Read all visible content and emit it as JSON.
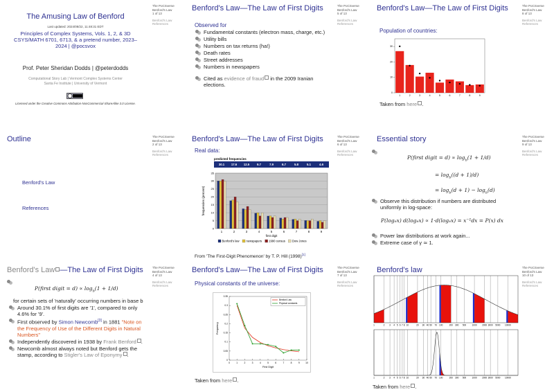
{
  "sidebar": {
    "header": "The PoCSverse",
    "topic": "Benford's Law",
    "sections": [
      "Benford's Law",
      "References"
    ]
  },
  "slides": [
    {
      "page": "1 of 13",
      "title": "The Amusing Law of Benford",
      "updated": "Last updated: 2024/08/22, 11:48:31 EDT",
      "course": "Principles of Complex Systems, Vols. 1, 2, & 3D CSYS/MATH 6701, 6713, & a pretend number, 2023–2024",
      "course_handle": "| @pocsvox",
      "author": "Prof. Peter Sheridan Dodds",
      "author_handle": "| @peterdodds",
      "affiliation": "Computational Story Lab | Vermont Complex Systems Center Santa Fe Institute | University of Vermont",
      "license": "Licensed under the Creative Commons Attribution-NonCommercial-ShareAlike 3.0 License."
    },
    {
      "page": "5 of 13",
      "title": "Benford's Law—The Law of First Digits",
      "heading": "Observed for",
      "items": [
        "Fundamental constants (electron mass, charge, etc.)",
        "Utility bills",
        "Numbers on tax returns (ha!)",
        "Death rates",
        "Street addresses",
        "Numbers in newspapers"
      ],
      "note": [
        "Cited as ",
        "evidence of fraud",
        " in the 2009 Iranian elections."
      ]
    },
    {
      "page": "8 of 13",
      "title": "Benford's Law—The Law of First Digits",
      "heading": "Population of countries:",
      "chart": {
        "type": "bar",
        "categories": [
          "1",
          "2",
          "3",
          "4",
          "5",
          "6",
          "7",
          "8",
          "9"
        ],
        "values": [
          27,
          18,
          10.5,
          13,
          6.6,
          8.6,
          7.4,
          5,
          5.4
        ],
        "color": "#e8241c",
        "benford": [
          30.1,
          17.6,
          12.5,
          9.7,
          7.9,
          6.7,
          5.8,
          5.1,
          4.6
        ],
        "ylim": [
          0,
          35
        ],
        "yticks": [
          0,
          10,
          20,
          30
        ]
      },
      "source": [
        "Taken from ",
        "here",
        "."
      ]
    },
    {
      "page": "2 of 13",
      "title": "Outline",
      "items": [
        "Benford's Law",
        "References"
      ]
    },
    {
      "page": "6 of 13",
      "title": "Benford's Law—The Law of First Digits",
      "heading": "Real data:",
      "chart": {
        "type": "bar",
        "header": "predicted frequencies",
        "categories": [
          "1",
          "2",
          "3",
          "4",
          "5",
          "6",
          "7",
          "8",
          "9"
        ],
        "series": [
          {
            "name": "Benford's law",
            "color": "#1c2f7a",
            "values": [
              30.1,
              17.6,
              12.5,
              9.7,
              7.9,
              6.7,
              5.8,
              5.1,
              4.6
            ]
          },
          {
            "name": "newspapers",
            "color": "#e2c23a",
            "values": [
              30,
              18,
              12,
              10,
              8,
              6,
              6,
              5,
              5
            ]
          },
          {
            "name": "1990 census",
            "color": "#8c1f1f",
            "values": [
              31,
              20,
              14,
              8,
              7,
              7,
              5,
              5,
              4
            ]
          },
          {
            "name": "Dow Jones",
            "color": "#e8dcae",
            "values": [
              30,
              17,
              12,
              10,
              8,
              7,
              6,
              6,
              5
            ]
          }
        ],
        "ylim": [
          0,
          35
        ],
        "yticks": [
          0,
          5,
          10,
          15,
          20,
          25,
          30,
          35
        ],
        "xlabel": "first digit",
        "ylabel": "frequencies (percent)"
      },
      "source": [
        "From 'The First-Digit Phenomenon' by T. P. Hill (1998)",
        "[1]"
      ]
    },
    {
      "page": "9 of 13",
      "title": "Essential story",
      "equations": [
        [
          "P(first digit = d) ∝ log",
          "b",
          "(1 + 1/d)"
        ],
        [
          "= log",
          "b",
          "((d + 1)/d)"
        ],
        [
          "= log",
          "b",
          "(d + 1) − log",
          "b",
          "(d)"
        ]
      ],
      "items": [
        "Observe this distribution if numbers are distributed uniformly in log-space:"
      ],
      "equation2": "P(logₑx) d(logₑx) ∝ 1·d(logₑx) = x⁻¹dx = P(x) dx",
      "items2": [
        "Power law distributions at work again...",
        "Extreme case of γ ≃ 1."
      ]
    },
    {
      "page": "4 of 13",
      "title": [
        "Benford's Law",
        "—The Law of First Digits"
      ],
      "equation": [
        "P(first digit = d) ∝ log",
        "b",
        "(1 + 1/d)"
      ],
      "text": "for certain sets of 'naturally' occurring numbers in base b",
      "items": [
        [
          "Around 30.1% of first digits are '1', compared to only 4.6% for '9'."
        ],
        [
          "First observed by ",
          "Simon Newcomb",
          "[3]",
          " in 1881 ",
          "\"Note on the Frequency of Use of the Different Digits in Natural Numbers\""
        ],
        [
          "Independently discovered in 1938 by ",
          "Frank Benford",
          "."
        ],
        [
          "Newcomb almost always noted but Benford gets the stamp, according to ",
          "Stigler's Law of Eponymy",
          "."
        ]
      ]
    },
    {
      "page": "7 of 13",
      "title": "Benford's Law—The Law of First Digits",
      "heading": "Physical constants of the universe:",
      "chart": {
        "type": "line",
        "x": [
          1,
          2,
          3,
          4,
          5,
          6,
          7,
          8,
          9
        ],
        "series": [
          {
            "name": "Benford Law",
            "color": "#e0321e",
            "values": [
              0.301,
              0.176,
              0.125,
              0.097,
              0.079,
              0.067,
              0.058,
              0.051,
              0.046
            ]
          },
          {
            "name": "Physical constants",
            "color": "#2a9d2a",
            "values": [
              0.31,
              0.19,
              0.09,
              0.09,
              0.085,
              0.075,
              0.04,
              0.055,
              0.055
            ]
          }
        ],
        "xlim": [
          0,
          10
        ],
        "xticks": [
          0,
          1,
          2,
          3,
          4,
          5,
          6,
          7,
          8,
          9,
          10
        ],
        "ylim": [
          0,
          0.35
        ],
        "yticks": [
          0,
          0.05,
          0.1,
          0.15,
          0.2,
          0.25,
          0.3,
          0.35
        ],
        "xlabel": "First Digit",
        "ylabel": "Frequency"
      },
      "source": [
        "Taken from ",
        "here",
        "."
      ]
    },
    {
      "page": "10 of 13",
      "title": "Benford's law",
      "plots": {
        "xlim": [
          1,
          20000
        ],
        "xticks": [
          1,
          2,
          3,
          4,
          5,
          6,
          7,
          8,
          10,
          20,
          30,
          40,
          50,
          70,
          100,
          200,
          300,
          500,
          1000,
          2000,
          3000,
          5000,
          10000
        ]
      },
      "source": [
        "Taken from ",
        "here",
        "."
      ]
    }
  ]
}
